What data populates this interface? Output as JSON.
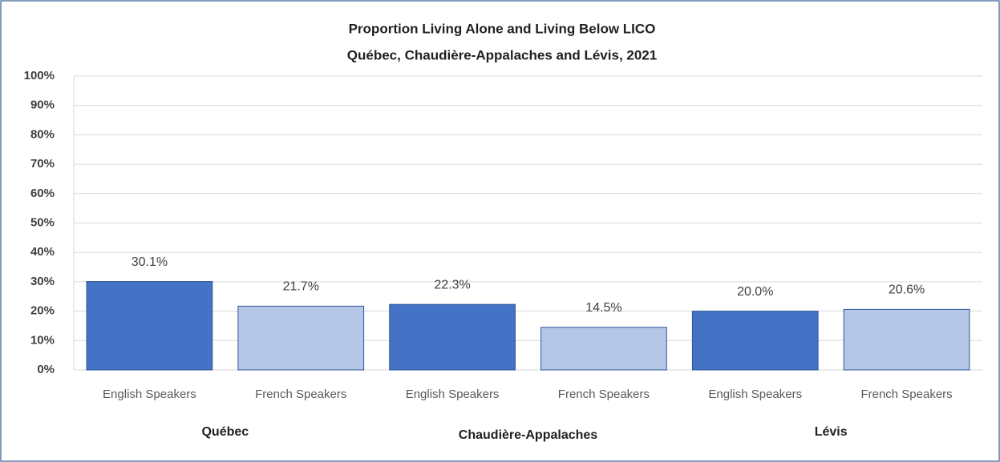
{
  "chart_data": {
    "type": "bar",
    "title": "Proportion Living Alone and Living Below LICO",
    "subtitle": "Québec, Chaudière-Appalaches  and Lévis, 2021",
    "categories": [
      "English Speakers",
      "French Speakers",
      "English Speakers",
      "French Speakers",
      "English Speakers",
      "French Speakers"
    ],
    "groups": [
      "Québec",
      "Chaudière-Appalaches",
      "Lévis"
    ],
    "values": [
      30.1,
      21.7,
      22.3,
      14.5,
      20.0,
      20.6
    ],
    "value_labels": [
      "30.1%",
      "21.7%",
      "22.3%",
      "14.5%",
      "20.0%",
      "20.6%"
    ],
    "colors": [
      "#4472c4",
      "#b4c7e7",
      "#4472c4",
      "#b4c7e7",
      "#4472c4",
      "#b4c7e7"
    ],
    "ylim": [
      0,
      100
    ],
    "yticks": [
      {
        "value": 0,
        "label": "0%"
      },
      {
        "value": 10,
        "label": "10%"
      },
      {
        "value": 20,
        "label": "20%"
      },
      {
        "value": 30,
        "label": "30%"
      },
      {
        "value": 40,
        "label": "40%"
      },
      {
        "value": 50,
        "label": "50%"
      },
      {
        "value": 60,
        "label": "60%"
      },
      {
        "value": 70,
        "label": "70%"
      },
      {
        "value": 80,
        "label": "80%"
      },
      {
        "value": 90,
        "label": "90%"
      },
      {
        "value": 100,
        "label": "100%"
      }
    ],
    "grid": true
  }
}
